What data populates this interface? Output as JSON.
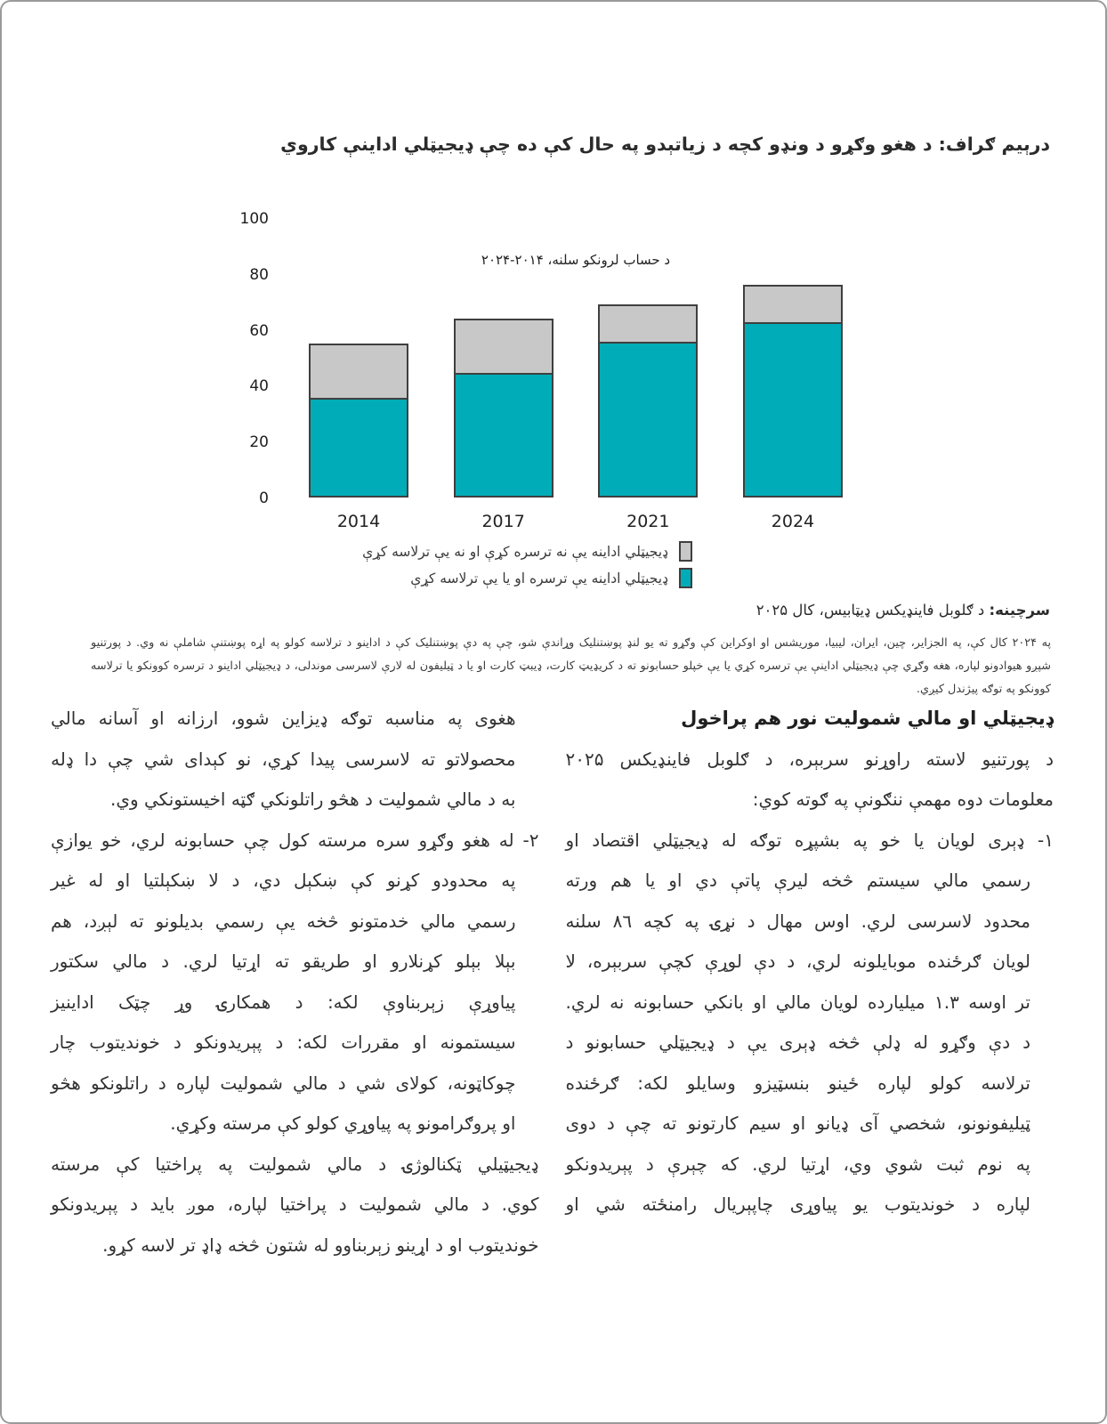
{
  "figure": {
    "title": "درېيم ګراف: د هغو وګړو د ونډو کچه د زياتېدو په حال کې ده چې ډيجيټلي اداينې کاروي"
  },
  "chart_data": {
    "type": "bar",
    "stacked": true,
    "categories": [
      "2014",
      "2017",
      "2021",
      "2024"
    ],
    "series": [
      {
        "name": "ډيجيټلي اداينه يې ترسره او يا يې ترلاسه کړې",
        "color": "#00ACB8",
        "values": [
          35,
          44,
          55,
          62
        ]
      },
      {
        "name": "ډيجيټلي اداينه يې نه ترسره کړې او نه يې ترلاسه کړې",
        "color": "#C8C8C8",
        "values": [
          20,
          20,
          14,
          14
        ]
      }
    ],
    "stack_totals": [
      55,
      64,
      69,
      76
    ],
    "annotation": "د حساب لرونکو سلنه، ۲۰۱۴-۲۰۲۴",
    "y_ticks": [
      0,
      20,
      40,
      60,
      80,
      100
    ],
    "ylim": [
      0,
      100
    ],
    "grid": false,
    "legend_position": "below",
    "bar_border_color": "#3F3F3F"
  },
  "source": {
    "label": "سرچينه:",
    "text": " د ګلوبل فاينډيکس ډيټابيس، کال ۲۰۲۵"
  },
  "footnote": {
    "lines": [
      "په ۲۰۲۴ کال کې، په الجزاير، چين، ايران، ليبيا، موريشس او اوکراين کې وګړو ته يو لنډ پوښتنليک وړاندې شو، چې په دې پوښتنليک کې د اداينو د ترلاسه کولو په اړه پوښتنې شاملې نه وي. د پورتنيو",
      "شپږو هيوادونو لپاره، هغه وګړي چې ډيجيټلي اداينې يې ترسره کړي يا يې خپلو حسابونو ته د کريډيټ کارت، ډيبټ کارت او يا د ټيليفون له لارې لاسرسی موندلی، د ډيجيټلي اداينو د ترسره کوونکو يا ترلاسه",
      "کوونکو په توګه پيژندل کيږي."
    ]
  },
  "body": {
    "right_column": [
      {
        "heading": true,
        "indent": "none",
        "lines": [
          "ډيجيټلي او مالي شموليت نور هم پراخول"
        ]
      },
      {
        "indent": "none",
        "lines": [
          "د پورتنيو لاسته راوړنو سربېره، د ګلوبل فاينډيکس ۲۰۲۵",
          "معلومات دوه مهمې ننګونې په ګوته کوي:"
        ]
      },
      {
        "cont": true,
        "indent": "hang",
        "lines": [
          "١- ډېری لويان يا خو په بشپړه توګه له ډيجيټلي اقتصاد او",
          "رسمي مالي سيستم څخه ليرې پاتې دي او يا هم ورته",
          "محدود لاسرسی لري. اوس مهال د نړۍ په کچه ٨٦ سلنه",
          "لويان ګرځنده موبايلونه لري، د دې لوړې کچې سربېره، لا",
          "تر اوسه ١.٣ ميليارده لويان مالي او بانکي حسابونه نه لري.",
          "د دې وګړو له ډلې څخه ډېری يې د ډيجيټلي حسابونو د",
          "ترلاسه کولو لپاره ځينو بنسټيزو وسايلو لکه: ګرځنده",
          "ټيليفونونو، شخصي آی ډيانو او سيم کارتونو ته چې د دوی",
          "په نوم ثبت شوي وي، اړتيا لري. که چېرې د پېريدونکو",
          "لپاره د خونديتوب يو پياوړی چاپېريال رامنځته شي او"
        ]
      }
    ],
    "left_column": [
      {
        "indent": "all",
        "lines": [
          "هغوی په مناسبه توګه ډيزاين شوو، ارزانه او آسانه مالي",
          "محصولاتو ته لاسرسی پيدا کړي، نو کېدای شي چې دا ډله",
          "به د مالي شموليت د هڅو راتلونکي ګټه اخيستونکي وي."
        ]
      },
      {
        "indent": "hang",
        "lines": [
          "٢- له هغو وګړو سره مرسته کول چې حسابونه لري، خو يوازې",
          "په محدودو کړنو کې ښکېل دي، د لا ښکېلتيا او له غير",
          "رسمي مالي خدمتونو څخه يې رسمي بديلونو ته لېږد، هم",
          "بېلا بېلو کړنلارو او طريقو ته اړتيا لري. د مالي سکتور",
          "پياوړې زېربناوې لکه: د همکارۍ وړ چټک اداينيز",
          "سيستمونه او مقررات لکه: د پېريدونکو د خونديتوب چار",
          "چوکاټونه، کولای شي د مالي شموليت لپاره د راتلونکو هڅو",
          "او پروګرامونو په پياوړي کولو کې مرسته وکړي."
        ]
      },
      {
        "indent": "none",
        "lines": [
          "ډيجيټيلي ټکنالوژۍ د مالي شموليت په پراختيا کې مرسته",
          "کوي. د مالي شموليت د پراختيا لپاره، موږ بايد د پېريدونکو",
          "خونديتوب او د اړينو زېربناوو له شتون څخه ډاډ تر لاسه کړو."
        ]
      }
    ]
  }
}
